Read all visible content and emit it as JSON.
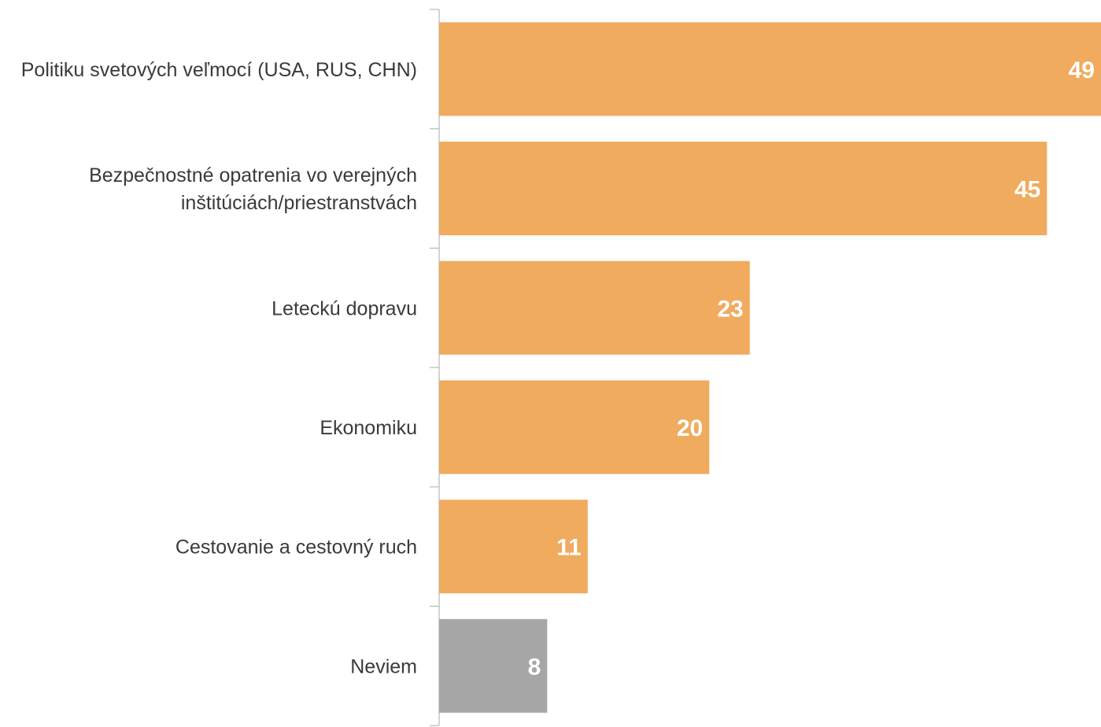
{
  "chart_data": {
    "type": "bar",
    "orientation": "horizontal",
    "categories": [
      [
        "Politiku svetových veľmocí (USA, RUS, CHN)"
      ],
      [
        "Bezpečnostné opatrenia vo verejných",
        "inštitúciách/priestranstvách"
      ],
      [
        "Leteckú dopravu"
      ],
      [
        "Ekonomiku"
      ],
      [
        "Cestovanie a cestovný ruch"
      ],
      [
        "Neviem"
      ]
    ],
    "values": [
      49,
      45,
      23,
      20,
      11,
      8
    ],
    "value_labels": [
      "49",
      "45",
      "23",
      "20",
      "11",
      "8"
    ],
    "colors": [
      "#f0ab5e",
      "#f0ab5e",
      "#f0ab5e",
      "#f0ab5e",
      "#f0ab5e",
      "#a6a6a6"
    ],
    "xlim": [
      0,
      49
    ],
    "grid": false,
    "legend": "none"
  }
}
